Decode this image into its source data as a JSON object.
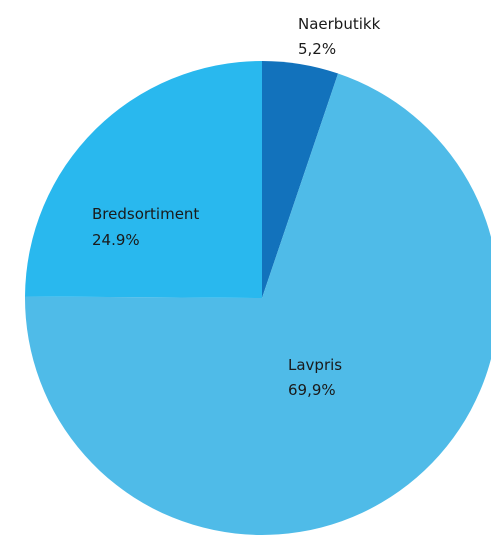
{
  "chart_data": {
    "type": "pie",
    "title": "",
    "start_angle_deg": 0,
    "direction": "clockwise",
    "slices": [
      {
        "label": "Naerbutikk",
        "value": 5.2,
        "value_label": "5,2%",
        "color": "#1272bc"
      },
      {
        "label": "Lavpris",
        "value": 69.9,
        "value_label": "69,9%",
        "color": "#4fbbe8"
      },
      {
        "label": "Bredsortiment",
        "value": 24.9,
        "value_label": "24.9%",
        "color": "#29b8ee"
      }
    ]
  }
}
